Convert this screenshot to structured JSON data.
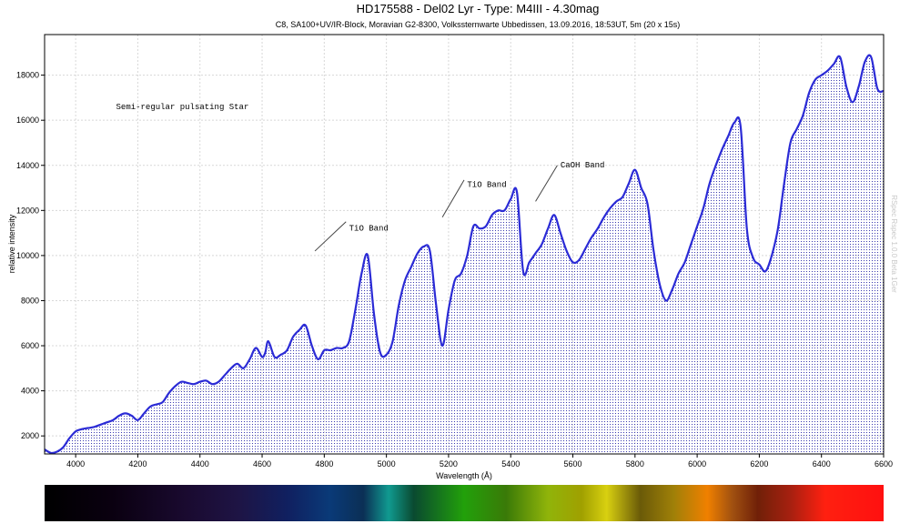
{
  "chart_data": {
    "type": "area",
    "title": "HD175588 -  Del02 Lyr - Type: M4III - 4.30mag",
    "subtitle": "C8, SA100+UV/IR-Block, Moravian G2-8300, Volkssternwarte Ubbedissen, 13.09.2016, 18:53UT, 5m (20 x 15s)",
    "xlabel": "Wavelength (Å)",
    "ylabel": "relative intensity",
    "xlim": [
      3900,
      6600
    ],
    "ylim": [
      1200,
      19800
    ],
    "xticks": [
      4000,
      4200,
      4400,
      4600,
      4800,
      5000,
      5200,
      5400,
      5600,
      5800,
      6000,
      6200,
      6400,
      6600
    ],
    "yticks": [
      2000,
      4000,
      6000,
      8000,
      10000,
      12000,
      14000,
      16000,
      18000
    ],
    "grid": true,
    "colors": {
      "line": "#2b2bd6",
      "fill_dots": "#3a3ab0",
      "frame": "#000000"
    },
    "series": [
      {
        "x": [
          3900,
          3920,
          3940,
          3960,
          3980,
          4000,
          4020,
          4040,
          4060,
          4080,
          4100,
          4120,
          4140,
          4160,
          4180,
          4200,
          4220,
          4240,
          4260,
          4280,
          4300,
          4320,
          4340,
          4360,
          4380,
          4400,
          4420,
          4440,
          4460,
          4480,
          4500,
          4520,
          4540,
          4560,
          4580,
          4600,
          4610,
          4620,
          4640,
          4660,
          4680,
          4700,
          4720,
          4740,
          4760,
          4780,
          4800,
          4820,
          4840,
          4860,
          4880,
          4900,
          4920,
          4940,
          4960,
          4980,
          5000,
          5020,
          5040,
          5060,
          5080,
          5100,
          5120,
          5140,
          5160,
          5180,
          5200,
          5220,
          5240,
          5260,
          5280,
          5300,
          5320,
          5340,
          5360,
          5380,
          5400,
          5420,
          5440,
          5460,
          5480,
          5500,
          5520,
          5540,
          5560,
          5580,
          5600,
          5620,
          5640,
          5660,
          5680,
          5700,
          5720,
          5740,
          5760,
          5780,
          5800,
          5820,
          5840,
          5860,
          5880,
          5900,
          5920,
          5940,
          5960,
          5980,
          6000,
          6020,
          6040,
          6060,
          6080,
          6100,
          6120,
          6140,
          6160,
          6180,
          6200,
          6220,
          6240,
          6260,
          6280,
          6300,
          6320,
          6340,
          6360,
          6380,
          6400,
          6420,
          6440,
          6460,
          6480,
          6500,
          6520,
          6540,
          6560,
          6580,
          6600
        ],
        "y": [
          1400,
          1250,
          1300,
          1500,
          1900,
          2200,
          2300,
          2350,
          2400,
          2500,
          2600,
          2700,
          2900,
          3000,
          2900,
          2700,
          3000,
          3300,
          3400,
          3500,
          3900,
          4200,
          4400,
          4350,
          4300,
          4400,
          4450,
          4300,
          4400,
          4700,
          5000,
          5200,
          5000,
          5400,
          5900,
          5500,
          5700,
          6200,
          5500,
          5600,
          5800,
          6400,
          6700,
          6900,
          6000,
          5400,
          5800,
          5800,
          5900,
          5900,
          6200,
          7600,
          9200,
          10000,
          7400,
          5700,
          5600,
          6200,
          7800,
          8900,
          9500,
          10100,
          10400,
          10200,
          7800,
          6000,
          7600,
          8900,
          9200,
          10000,
          11300,
          11200,
          11300,
          11800,
          12000,
          12000,
          12500,
          12800,
          9300,
          9700,
          10100,
          10500,
          11200,
          11800,
          11000,
          10200,
          9700,
          9800,
          10300,
          10800,
          11200,
          11700,
          12100,
          12400,
          12600,
          13200,
          13800,
          13000,
          12300,
          10200,
          8700,
          8000,
          8500,
          9200,
          9700,
          10500,
          11300,
          12100,
          13200,
          14000,
          14700,
          15300,
          15900,
          15700,
          11200,
          9900,
          9600,
          9300,
          10000,
          11200,
          13200,
          15000,
          15600,
          16200,
          17200,
          17800,
          18000,
          18200,
          18500,
          18800,
          17500,
          16800,
          17500,
          18600,
          18800,
          17400,
          17300
        ]
      }
    ],
    "annotations": [
      {
        "text": "Semi-regular pulsating Star",
        "x": 4130,
        "y": 16500,
        "line": null
      },
      {
        "text": "TiO Band",
        "x": 4880,
        "y": 11100,
        "line": [
          4770,
          10200,
          4870,
          11500
        ]
      },
      {
        "text": "TiO Band",
        "x": 5260,
        "y": 13050,
        "line": [
          5180,
          11700,
          5250,
          13350
        ]
      },
      {
        "text": "CaOH Band",
        "x": 5560,
        "y": 13900,
        "line": [
          5480,
          12400,
          5550,
          14000
        ]
      }
    ],
    "watermark": "RSpec Rspec 1.0.0 Beta 1Ger"
  }
}
